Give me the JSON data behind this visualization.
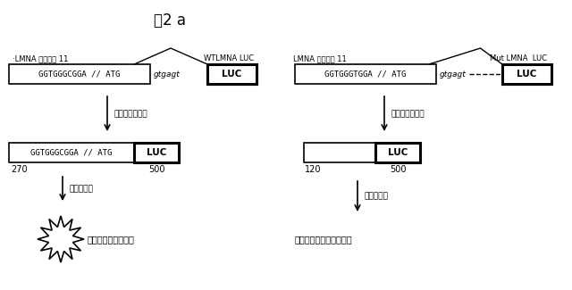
{
  "title": "図2 a",
  "background_color": "#ffffff",
  "left_label1": "·LMNA エキソン 11",
  "left_label2": "WTLMNA LUC",
  "left_seq": "GGTGGGCGGA // ATG",
  "left_italic": "gtgagt",
  "right_label1": "LMNA エキソン 11",
  "right_label2": "Mut LMNA  LUC",
  "right_seq": "GGTGGGTGGA // ATG",
  "right_italic": "gtgagt",
  "splice_label": "スプライシング",
  "bottom_left_seq": "GGTGGGCGGA // ATG",
  "bottom_left_num1": "270",
  "bottom_left_num2": "500",
  "bottom_left_label": "発光の測定",
  "bottom_left_result": "ルシフェラーゼ活性",
  "bottom_right_num1": "120",
  "bottom_right_num2": "500",
  "bottom_right_label": "発光の測定",
  "bottom_right_result": "ルシフェラーゼ活性無し"
}
